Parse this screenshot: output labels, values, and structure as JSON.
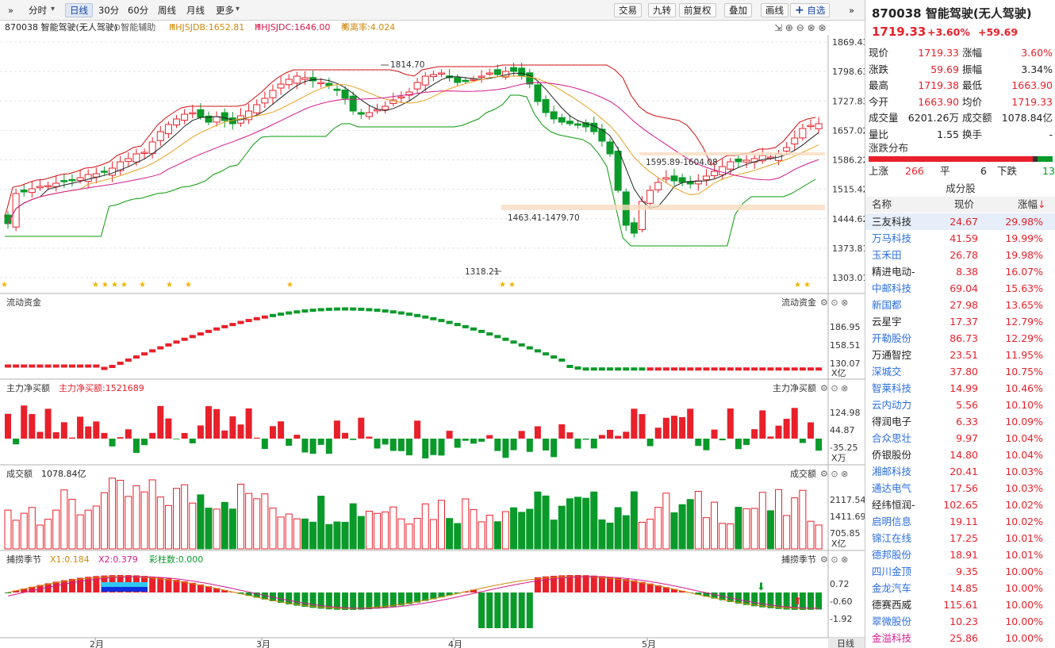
{
  "toolbar": {
    "left": [
      "»",
      "分时",
      "日线",
      "30分",
      "60分",
      "周线",
      "月线",
      "更多"
    ],
    "right": [
      "交易",
      "九转",
      "前复权",
      "叠加",
      "画线",
      "自选"
    ],
    "more_arrow": "▾",
    "search_icon": "⊕"
  },
  "info": {
    "stock": "870038 智能驾驶(无人驾驶)",
    "assist": "智能辅助",
    "l1": "HHJSJDB:1652.81",
    "l2": "HHJSJDC:1646.00",
    "l3": "稀离率:4.024"
  },
  "axes": {
    "main": [
      "1869.43",
      "1798.63",
      "1727.83",
      "1657.02",
      "1586.22",
      "1515.42",
      "1444.62",
      "1373.81",
      "1303.01"
    ],
    "flow": [
      "186.95",
      "158.51",
      "130.07"
    ],
    "flow_unit": "X亿",
    "net": [
      "124.98",
      "44.87",
      "-35.25"
    ],
    "net_unit": "X万",
    "vol": [
      "2117.54",
      "1411.69",
      "705.85"
    ],
    "vol_unit": "X亿",
    "ind": [
      "0.72",
      "-0.60",
      "-1.92"
    ]
  },
  "panels": {
    "flow": "流动资金",
    "net": "主力净买额",
    "net_val": "主力净买额:1521689",
    "vol": "成交额",
    "vol_val": "1078.84亿",
    "ind": "捕捞季节",
    "x1": "X1:0.184",
    "x2": "X2:0.379",
    "cz": "彩柱数:0.000"
  },
  "months": [
    "2月",
    "3月",
    "4月",
    "5月"
  ],
  "period_label": "日线",
  "annot": {
    "high": "1814.70",
    "gap1": "1463.41-1479.70",
    "gap2": "1595.89-1604.08",
    "low": "1318.21"
  },
  "colors": {
    "up": "#e8202a",
    "down": "#0a9a2a",
    "ma5": "#222222",
    "ma10": "#e8a020",
    "ma20": "#d41a8a",
    "band_up": "#d01010",
    "band_dn": "#0a9a0a"
  },
  "chart_data": {
    "type": "candlestick",
    "months": [
      "2月",
      "3月",
      "4月",
      "5月"
    ],
    "ylim": [
      1303.01,
      1869.43
    ],
    "last_close": 1719.33,
    "high_mark": 1814.7,
    "low_mark": 1318.21
  },
  "right": {
    "title": "870038 智能驾驶(无人驾驶)",
    "price": "1719.33",
    "chg_pct": "+3.60%",
    "chg": "+59.69",
    "quote": [
      [
        "现价",
        "1719.33",
        "up",
        "涨幅",
        "3.60%",
        "up"
      ],
      [
        "涨跌",
        "59.69",
        "up",
        "振幅",
        "3.34%",
        "blk"
      ],
      [
        "最高",
        "1719.38",
        "up",
        "最低",
        "1663.90",
        "up"
      ],
      [
        "今开",
        "1663.90",
        "up",
        "均价",
        "1719.33",
        "up"
      ],
      [
        "成交量",
        "6201.26万",
        "blk",
        "成交额",
        "1078.84亿",
        "blk"
      ],
      [
        "量比",
        "1.55",
        "blk",
        "换手",
        "-",
        "blk"
      ]
    ],
    "dist_title": "涨跌分布",
    "rise_label": "上涨",
    "rise": "266",
    "flat_label": "平",
    "flat": "6",
    "fall_label": "下跌",
    "fall": "13",
    "comp_title": "成分股",
    "cols": [
      "名称",
      "现价",
      "涨幅"
    ],
    "stocks": [
      [
        "三友科技",
        "24.67",
        "29.98%",
        "blk"
      ],
      [
        "万马科技",
        "41.59",
        "19.99%",
        "blue"
      ],
      [
        "玉禾田",
        "26.78",
        "19.98%",
        "blue"
      ],
      [
        "精进电动-",
        "8.38",
        "16.07%",
        "blk"
      ],
      [
        "中邮科技",
        "69.04",
        "15.63%",
        "blue"
      ],
      [
        "新国都",
        "27.98",
        "13.65%",
        "blue"
      ],
      [
        "云星宇",
        "17.37",
        "12.79%",
        "blk"
      ],
      [
        "开勒股份",
        "86.73",
        "12.29%",
        "blue"
      ],
      [
        "万通智控",
        "23.51",
        "11.95%",
        "blk"
      ],
      [
        "深城交",
        "37.80",
        "10.75%",
        "blue"
      ],
      [
        "智莱科技",
        "14.99",
        "10.46%",
        "blue"
      ],
      [
        "云内动力",
        "5.56",
        "10.10%",
        "blue"
      ],
      [
        "得润电子",
        "6.33",
        "10.09%",
        "blk"
      ],
      [
        "合众思壮",
        "9.97",
        "10.04%",
        "blue"
      ],
      [
        "侨银股份",
        "14.80",
        "10.04%",
        "blk"
      ],
      [
        "湘邮科技",
        "20.41",
        "10.03%",
        "blue"
      ],
      [
        "通达电气",
        "17.56",
        "10.03%",
        "blue"
      ],
      [
        "经纬恒润-",
        "102.65",
        "10.02%",
        "blk"
      ],
      [
        "启明信息",
        "19.11",
        "10.02%",
        "blue"
      ],
      [
        "锦江在线",
        "17.25",
        "10.01%",
        "blue"
      ],
      [
        "德邦股份",
        "18.91",
        "10.01%",
        "blue"
      ],
      [
        "四川金顶",
        "9.35",
        "10.00%",
        "blue"
      ],
      [
        "金龙汽车",
        "14.85",
        "10.00%",
        "blue"
      ],
      [
        "德赛西威",
        "115.61",
        "10.00%",
        "blk"
      ],
      [
        "翠微股份",
        "10.23",
        "10.00%",
        "blue"
      ],
      [
        "金溢科技",
        "25.86",
        "10.00%",
        "pink"
      ]
    ]
  }
}
